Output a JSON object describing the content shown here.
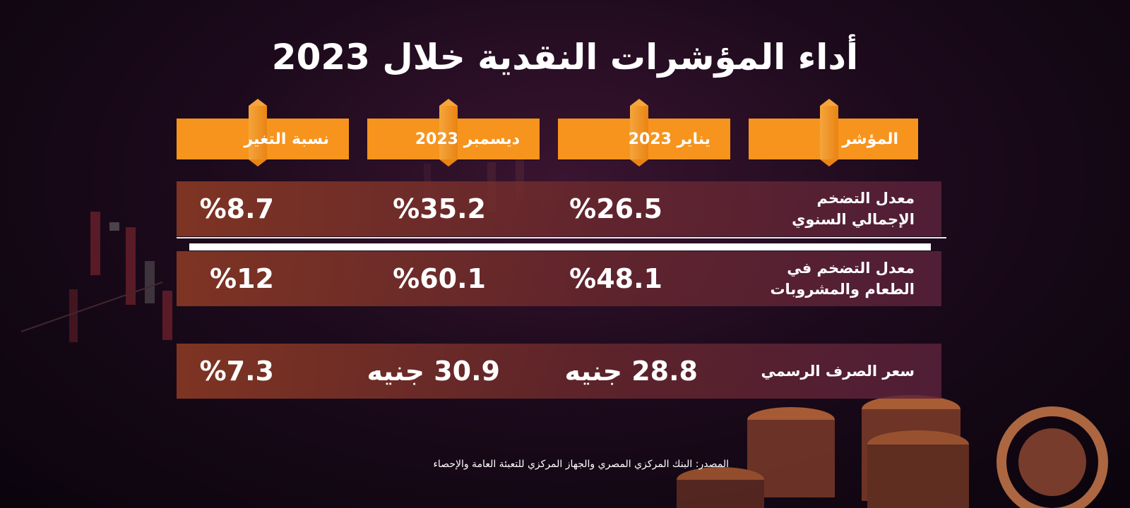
{
  "chart_data": {
    "type": "table",
    "title": "أداء المؤشرات النقدية خلال 2023",
    "columns": [
      "المؤشر",
      "يناير 2023",
      "ديسمبر 2023",
      "نسبة التغير"
    ],
    "rows": [
      {
        "indicator_line1": "معدل التضخم",
        "indicator_line2": "الإجمالي السنوي",
        "jan": "%26.5",
        "dec": "%35.2",
        "change": "%8.7"
      },
      {
        "indicator_line1": "معدل التضخم في",
        "indicator_line2": "الطعام والمشروبات",
        "jan": "%48.1",
        "dec": "%60.1",
        "change": "%12"
      },
      {
        "indicator_line1": "سعر الصرف الرسمي",
        "indicator_line2": "",
        "jan": "28.8 جنيه",
        "dec": "30.9 جنيه",
        "change": "%7.3"
      }
    ],
    "source": "المصدر: البنك المركزي المصري والجهاز المركزي للتعبئة العامة والإحصاء"
  },
  "colors": {
    "header_orange": "#f7941d",
    "row_maroon": "#8c3a24",
    "background": "#1c0a1c"
  }
}
